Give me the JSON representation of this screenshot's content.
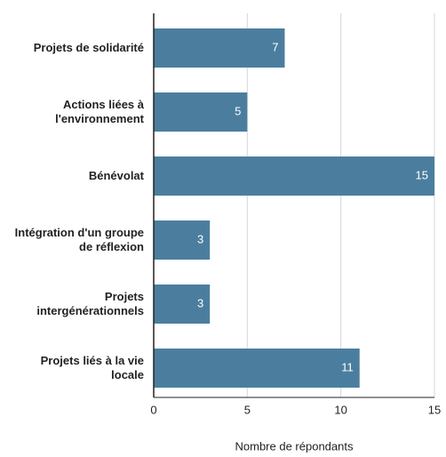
{
  "chart_data": {
    "type": "hbar",
    "categories": [
      "Projets de solidarité",
      "Actions liées à l'environnement",
      "Bénévolat",
      "Intégration d'un groupe de réflexion",
      "Projets intergénérationnels",
      "Projets liés à la vie locale"
    ],
    "values": [
      7,
      5,
      15,
      3,
      3,
      11
    ],
    "color": "#4b7e9e",
    "xlabel": "Nombre de répondants",
    "xlim": [
      0,
      15
    ],
    "xticks": [
      0,
      5,
      10,
      15
    ],
    "grid": true
  }
}
